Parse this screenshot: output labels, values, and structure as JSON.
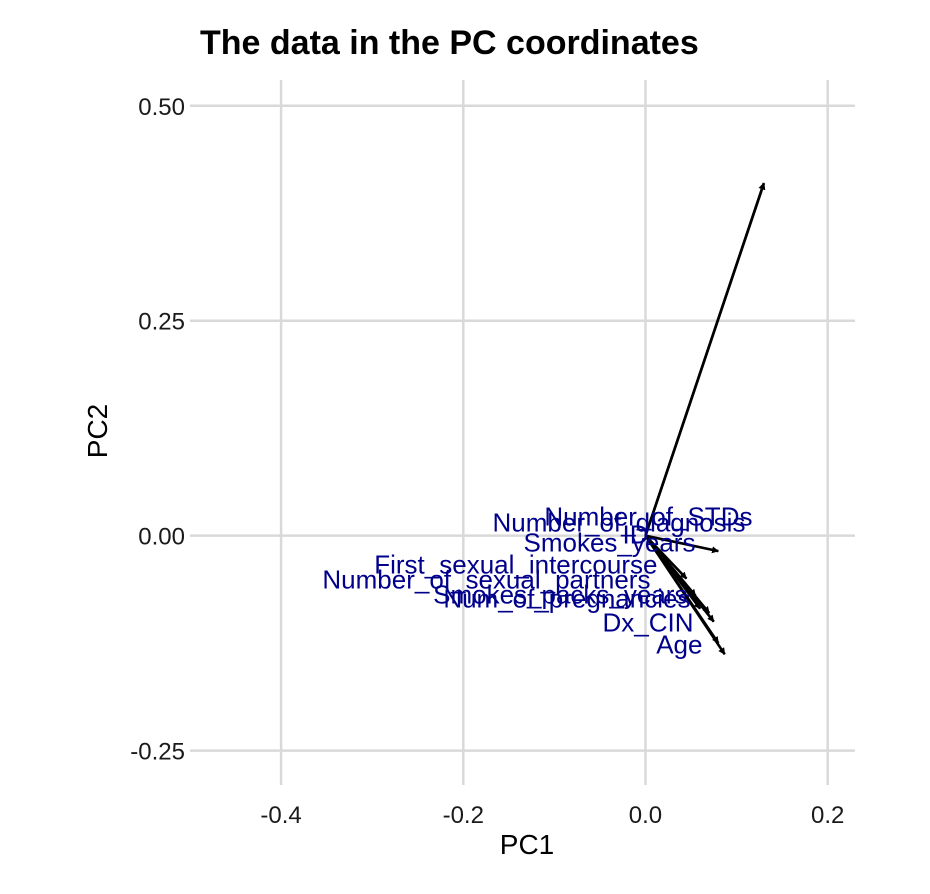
{
  "chart_data": {
    "type": "biplot",
    "title": "The data in the PC coordinates",
    "xlabel": "PC1",
    "ylabel": "PC2",
    "xlim": [
      -0.5,
      0.23
    ],
    "ylim": [
      -0.29,
      0.53
    ],
    "xticks": [
      -0.4,
      -0.2,
      0.0,
      0.2
    ],
    "yticks": [
      -0.25,
      0.0,
      0.25,
      0.5
    ],
    "xtick_labels": [
      "-0.4",
      "-0.2",
      "0.0",
      "0.2"
    ],
    "ytick_labels": [
      "-0.25",
      "0.00",
      "0.25",
      "0.50"
    ],
    "grid": true,
    "label_color": "#00008b",
    "arrow_color": "#000000",
    "vectors": [
      {
        "name": "Number_of_diagnosis",
        "x": 0.13,
        "y": 0.41
      },
      {
        "name": "Number_of_STDs",
        "x": 0.13,
        "y": 0.41
      },
      {
        "name": "ID",
        "x": 0.08,
        "y": -0.018
      },
      {
        "name": "Smokes_years",
        "x": 0.045,
        "y": -0.05
      },
      {
        "name": "First_sexual_intercourse",
        "x": 0.055,
        "y": -0.07
      },
      {
        "name": "Number_of_sexual_partners",
        "x": 0.06,
        "y": -0.085
      },
      {
        "name": "Smokes_packs_years",
        "x": 0.07,
        "y": -0.09
      },
      {
        "name": "Num_of_pregnancies",
        "x": 0.075,
        "y": -0.1
      },
      {
        "name": "Dx_CIN",
        "x": 0.08,
        "y": -0.125
      },
      {
        "name": "Age",
        "x": 0.087,
        "y": -0.138
      }
    ]
  }
}
